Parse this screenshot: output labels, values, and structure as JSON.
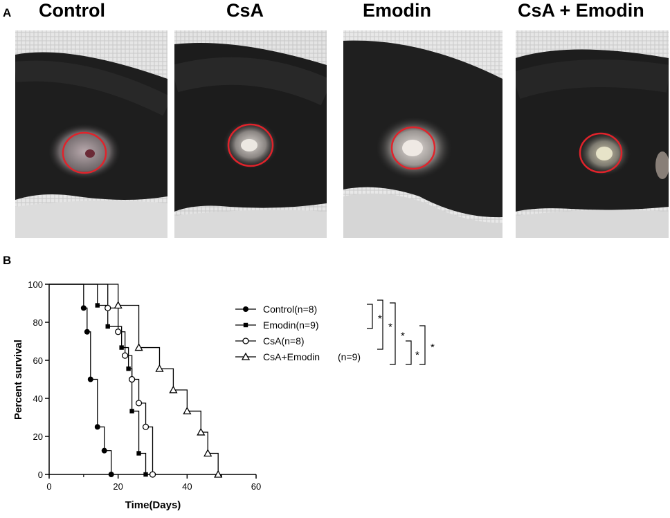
{
  "panel_a": {
    "letter": "A",
    "photos": [
      {
        "title": "Control"
      },
      {
        "title": "CsA"
      },
      {
        "title": "Emodin"
      },
      {
        "title": "CsA + Emodin"
      }
    ],
    "circle_color": "#e0232b"
  },
  "panel_b": {
    "letter": "B"
  },
  "chart_data": {
    "type": "line",
    "xlabel": "Time(Days)",
    "ylabel": "Percent survival",
    "xlim": [
      0,
      60
    ],
    "ylim": [
      0,
      100
    ],
    "xticks": [
      0,
      20,
      40,
      60
    ],
    "yticks": [
      0,
      20,
      40,
      60,
      80,
      100
    ],
    "grid": false,
    "legend_position": "right",
    "series": [
      {
        "name": "Control(n=8)",
        "marker": "filled-circle",
        "x": [
          0,
          10,
          11,
          12,
          14,
          16,
          18
        ],
        "y": [
          100,
          87.5,
          75,
          50,
          25,
          12.5,
          0
        ]
      },
      {
        "name": "Emodin(n=9)",
        "marker": "filled-square",
        "x": [
          0,
          14,
          17,
          21,
          23,
          24,
          26,
          28
        ],
        "y": [
          100,
          88.9,
          77.8,
          66.7,
          55.6,
          33.3,
          11.1,
          0
        ]
      },
      {
        "name": "CsA(n=8)",
        "marker": "open-circle",
        "x": [
          0,
          17,
          20,
          22,
          24,
          26,
          28,
          30
        ],
        "y": [
          100,
          87.5,
          75,
          62.5,
          50,
          37.5,
          25,
          0
        ]
      },
      {
        "name": "CsA+Emodin",
        "name_suffix": "(n=9)",
        "marker": "open-triangle",
        "x": [
          0,
          20,
          26,
          32,
          36,
          40,
          44,
          46,
          49
        ],
        "y": [
          100,
          88.9,
          66.7,
          55.6,
          44.4,
          33.3,
          22.2,
          11.1,
          0
        ]
      }
    ],
    "significance": [
      {
        "label": "*"
      },
      {
        "label": "*"
      },
      {
        "label": "*"
      },
      {
        "label": "*"
      },
      {
        "label": "*"
      }
    ]
  }
}
